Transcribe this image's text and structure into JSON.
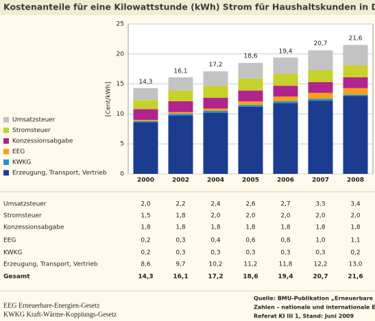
{
  "chart_data": {
    "type": "stacked_bar",
    "title": "Kostenanteile für eine Kilowattstunde (kWh) Strom für Haushaltskunden in Deutschland",
    "y_label": "[Cent/kWh]",
    "categories": [
      "2000",
      "2002",
      "2004",
      "2005",
      "2006",
      "2007",
      "2008"
    ],
    "series": [
      {
        "name": "Erzeugung, Transport, Vertrieb",
        "color": "#1b3c8f",
        "values": [
          8.6,
          9.7,
          10.2,
          11.2,
          11.8,
          12.2,
          13.0
        ],
        "value_labels": [
          "8,6",
          "9,7",
          "10,2",
          "11,2",
          "11,8",
          "12,2",
          "13,0"
        ]
      },
      {
        "name": "KWKG",
        "color": "#1f93d8",
        "values": [
          0.2,
          0.3,
          0.3,
          0.3,
          0.3,
          0.3,
          0.2
        ],
        "value_labels": [
          "0,2",
          "0,3",
          "0,3",
          "0,3",
          "0,3",
          "0,3",
          "0,2"
        ]
      },
      {
        "name": "EEG",
        "color": "#f4a11c",
        "values": [
          0.2,
          0.3,
          0.4,
          0.6,
          0.8,
          1.0,
          1.1
        ],
        "value_labels": [
          "0,2",
          "0,3",
          "0,4",
          "0,6",
          "0,8",
          "1,0",
          "1,1"
        ]
      },
      {
        "name": "Konzessionsabgabe",
        "color": "#b1248c",
        "values": [
          1.8,
          1.8,
          1.8,
          1.8,
          1.8,
          1.8,
          1.8
        ],
        "value_labels": [
          "1,8",
          "1,8",
          "1,8",
          "1,8",
          "1,8",
          "1,8",
          "1,8"
        ]
      },
      {
        "name": "Stromsteuer",
        "color": "#c6d12c",
        "values": [
          1.5,
          1.8,
          2.0,
          2.0,
          2.0,
          2.0,
          2.0
        ],
        "value_labels": [
          "1,5",
          "1,8",
          "2,0",
          "2,0",
          "2,0",
          "2,0",
          "2,0"
        ]
      },
      {
        "name": "Umsatzsteuer",
        "color": "#c3c3c3",
        "values": [
          2.0,
          2.2,
          2.4,
          2.6,
          2.7,
          3.3,
          3.4
        ],
        "value_labels": [
          "2,0",
          "2,2",
          "2,4",
          "2,6",
          "2,7",
          "3,3",
          "3,4"
        ]
      }
    ],
    "total_name": "Gesamt",
    "totals": [
      14.3,
      16.1,
      17.2,
      18.6,
      19.4,
      20.7,
      21.6
    ],
    "total_labels": [
      "14,3",
      "16,1",
      "17,2",
      "18,6",
      "19,4",
      "20,7",
      "21,6"
    ],
    "ylim": [
      0,
      25
    ],
    "yticks": [
      0,
      5,
      10,
      15,
      20,
      25
    ],
    "grid": true,
    "legend": "left"
  },
  "footnotes": [
    "EEG Erneuerbare-Energien-Gesetz",
    "KWKG Kraft-Wärme-Kopplungs-Gesetz"
  ],
  "source": [
    "Quelle: BMU-Publikation „Erneuerbare Energien in",
    "Zahlen – nationale und internationale Entwicklung“,",
    "Referat KI III 1, Stand: Juni 2009"
  ]
}
